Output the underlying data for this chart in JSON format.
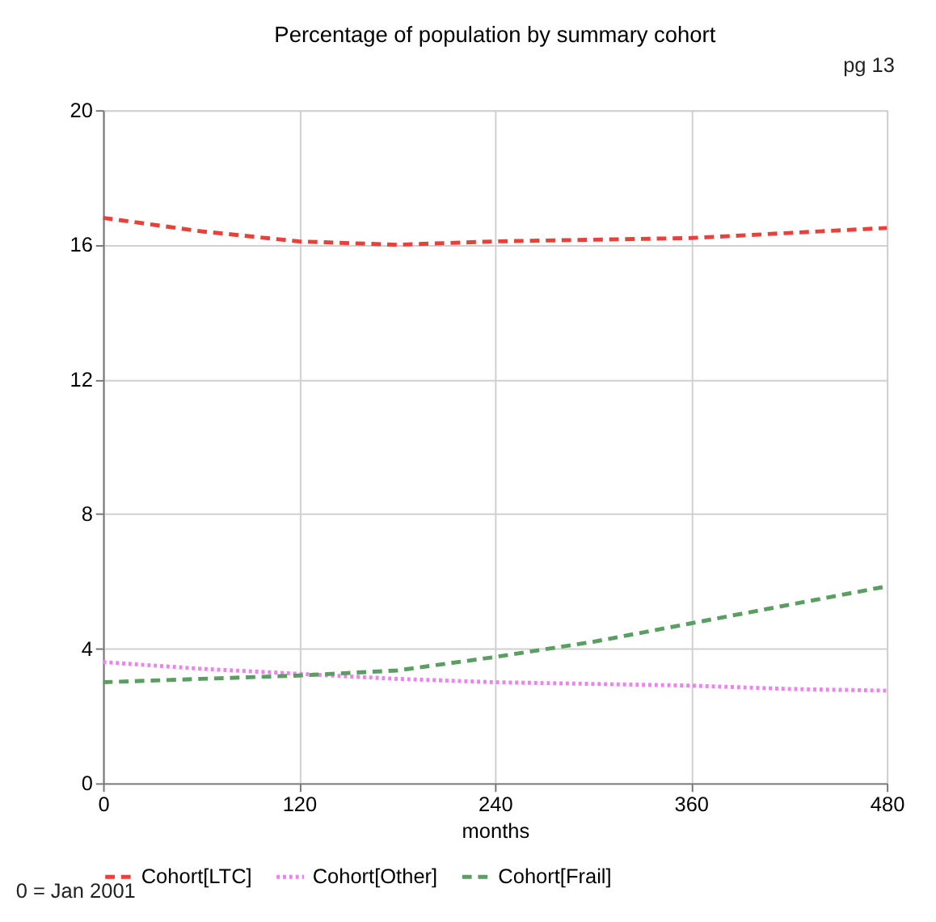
{
  "chart_data": {
    "type": "line",
    "title": "Percentage of population by summary cohort",
    "xlabel": "months",
    "x": [
      0,
      60,
      120,
      180,
      240,
      300,
      360,
      420,
      480
    ],
    "series": [
      {
        "name": "Cohort[LTC]",
        "color": "#e8413a",
        "line_style": "dashed",
        "values": [
          16.8,
          16.4,
          16.1,
          16.0,
          16.1,
          16.15,
          16.2,
          16.35,
          16.5
        ]
      },
      {
        "name": "Cohort[Other]",
        "color": "#ee82ee",
        "line_style": "dotted",
        "values": [
          3.6,
          3.4,
          3.25,
          3.1,
          3.0,
          2.95,
          2.9,
          2.8,
          2.75
        ]
      },
      {
        "name": "Cohort[Frail]",
        "color": "#5a9e62",
        "line_style": "dashed",
        "values": [
          3.0,
          3.1,
          3.2,
          3.35,
          3.75,
          4.2,
          4.75,
          5.3,
          5.85
        ]
      }
    ],
    "xlim": [
      0,
      480
    ],
    "xticks": [
      0,
      120,
      240,
      360,
      480
    ],
    "ylim": [
      0,
      20
    ],
    "yticks": [
      0,
      4,
      8,
      12,
      16,
      20
    ],
    "grid": true,
    "legend": "bottom",
    "marker": "none",
    "annotations": [
      "0 = Jan 2001",
      "pg 13"
    ]
  }
}
